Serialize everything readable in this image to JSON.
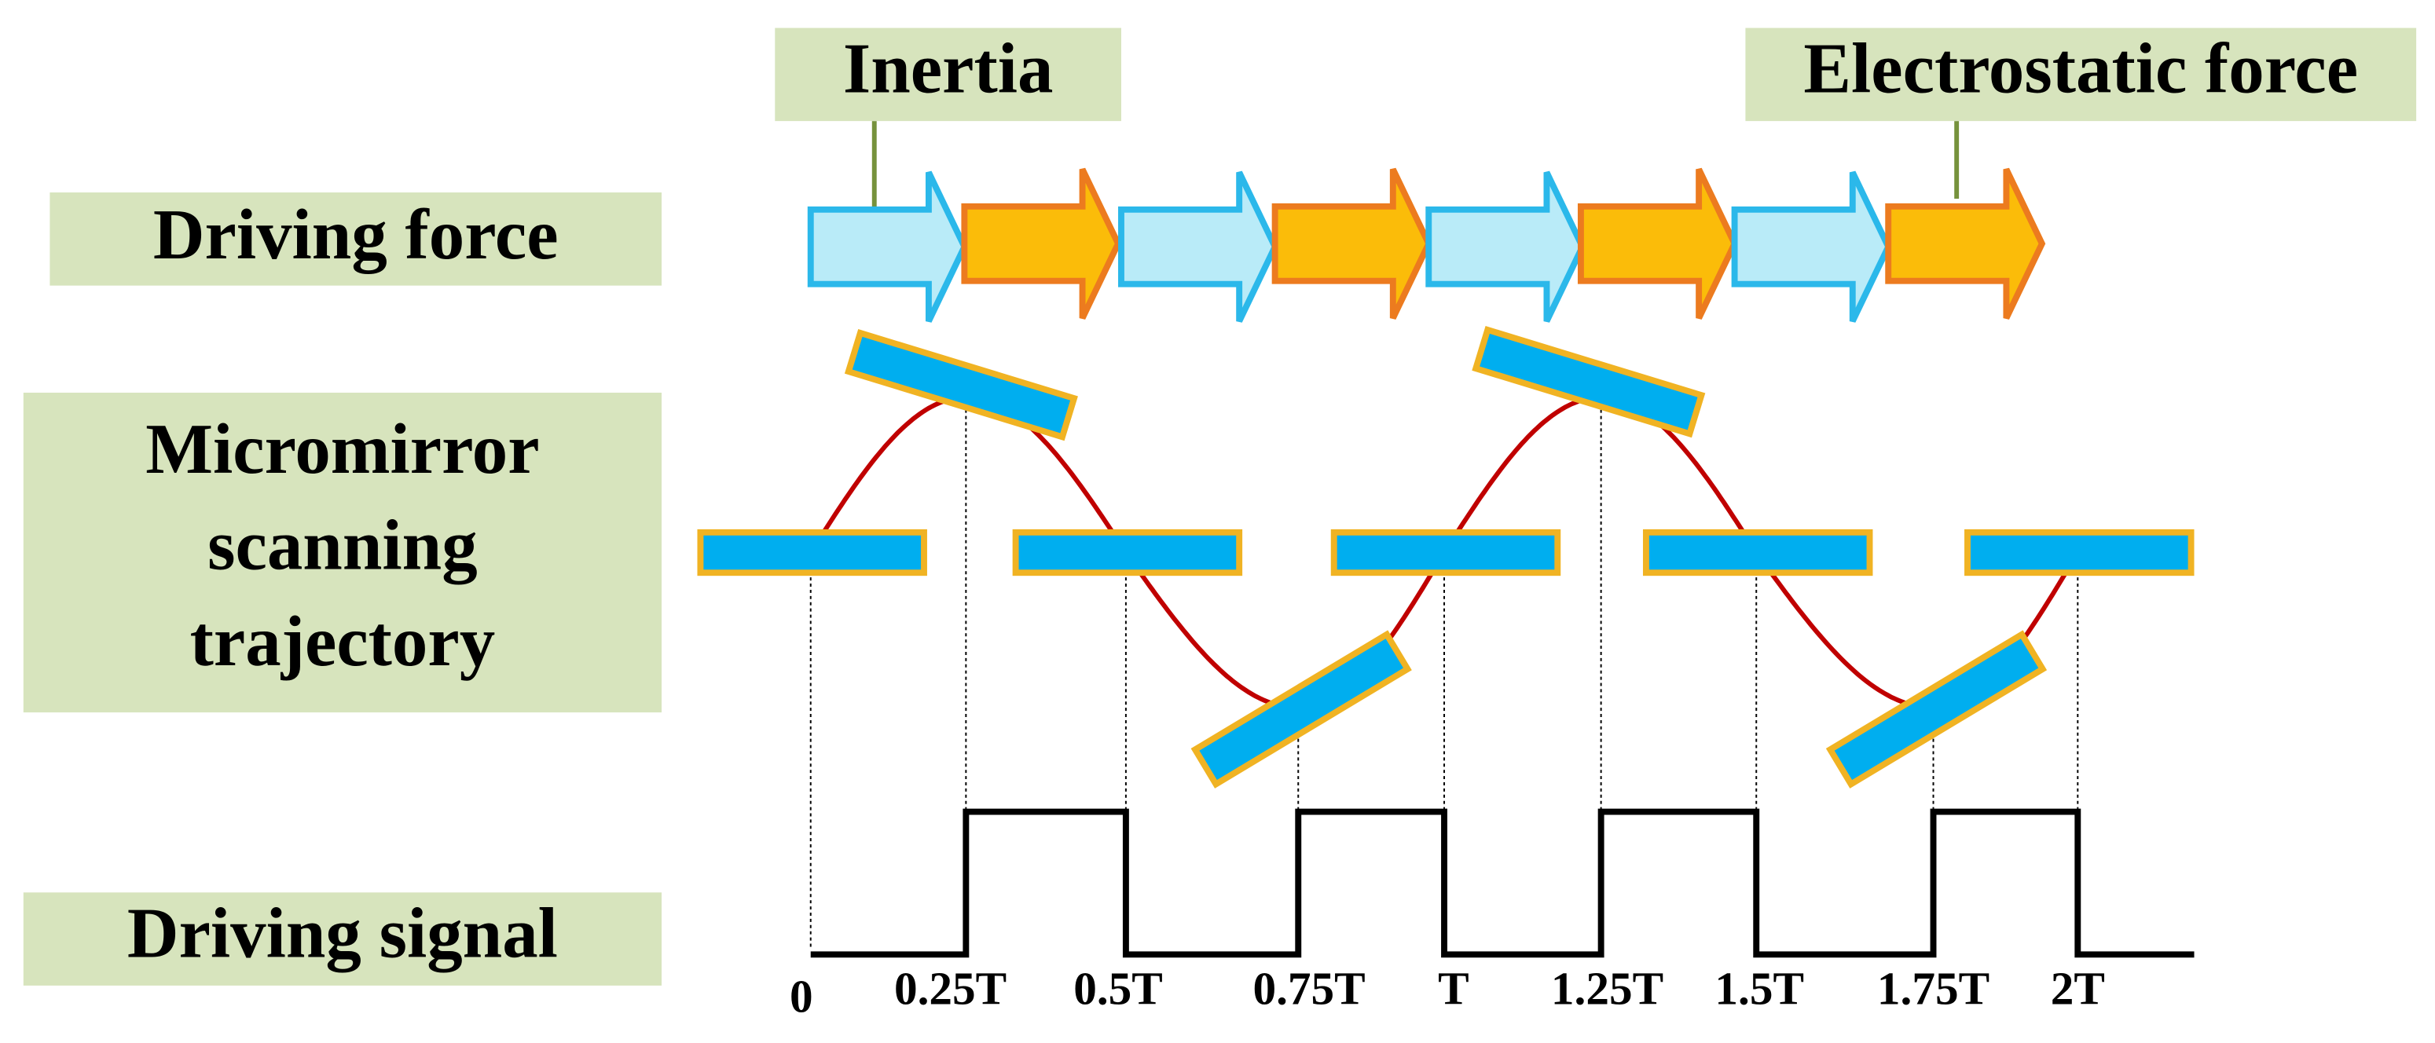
{
  "callouts": [
    {
      "label": "Inertia"
    },
    {
      "label": "Electrostatic force"
    }
  ],
  "rows": [
    {
      "lines": [
        "Driving force"
      ]
    },
    {
      "lines": [
        "Micromirror",
        "scanning",
        "trajectory"
      ]
    },
    {
      "lines": [
        "Driving signal"
      ]
    }
  ],
  "time_labels": [
    "0",
    "0.25T",
    "0.5T",
    "0.75T",
    "T",
    "1.25T",
    "1.5T",
    "1.75T",
    "2T"
  ]
}
